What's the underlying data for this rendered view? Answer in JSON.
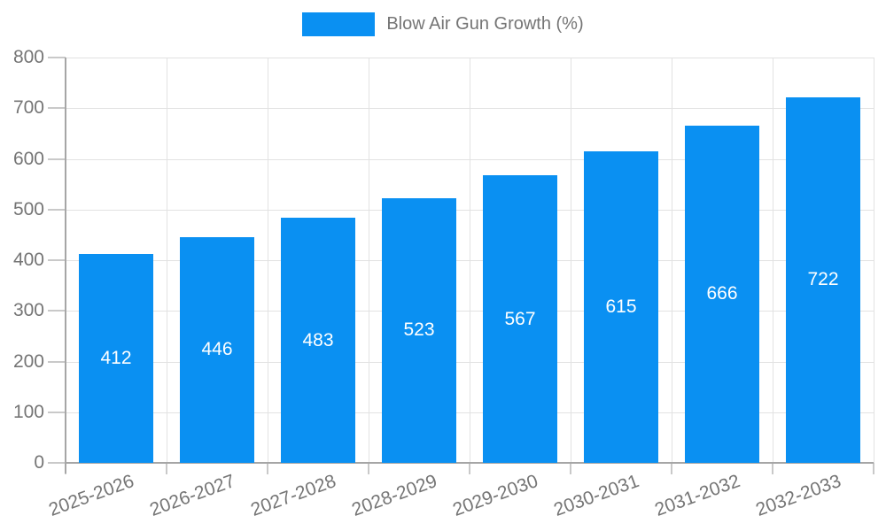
{
  "legend": {
    "label": "Blow Air Gun Growth (%)"
  },
  "colors": {
    "bar": "#0A90F2",
    "bar_label": "#FFFFFF",
    "axis": "#A6A6A6",
    "grid": "#E2E2E2",
    "tick": "#C9C9C9",
    "text": "#757575",
    "background": "#FFFFFF"
  },
  "chart_data": {
    "type": "bar",
    "title": "Blow Air Gun Growth (%)",
    "categories": [
      "2025-2026",
      "2026-2027",
      "2027-2028",
      "2028-2029",
      "2029-2030",
      "2030-2031",
      "2031-2032",
      "2032-2033"
    ],
    "values": [
      412,
      446,
      483,
      523,
      567,
      615,
      666,
      722
    ],
    "series": [
      {
        "name": "Blow Air Gun Growth (%)",
        "values": [
          412,
          446,
          483,
          523,
          567,
          615,
          666,
          722
        ]
      }
    ],
    "xlabel": "",
    "ylabel": "",
    "ylim": [
      0,
      800
    ],
    "yticks": [
      0,
      100,
      200,
      300,
      400,
      500,
      600,
      700,
      800
    ],
    "grid": "on",
    "legend_position": "top-center",
    "bar_value_labels": "inside-middle",
    "x_tick_rotation_deg": -20
  }
}
